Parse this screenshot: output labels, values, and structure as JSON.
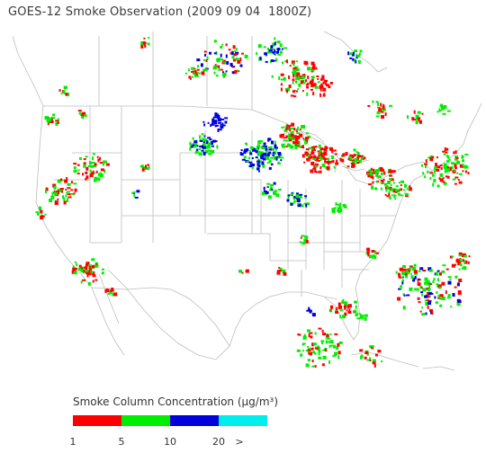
{
  "title": "GOES-12 Smoke Observation (2009 09 04  1800Z)",
  "legend": {
    "title": "Smoke Column Concentration (μg/m³)",
    "bins": [
      {
        "color": "#ff0000",
        "from": 1,
        "to": 5
      },
      {
        "color": "#00ee00",
        "from": 5,
        "to": 10
      },
      {
        "color": "#0000dd",
        "from": 10,
        "to": 20
      },
      {
        "color": "#00eeee",
        "from": 20,
        "to": null
      }
    ],
    "tick_labels": [
      "1",
      "5",
      "10",
      "20",
      ">"
    ]
  },
  "colors": {
    "boundaries": "#bdbdbd",
    "background": "#ffffff"
  },
  "map_region": "Contiguous United States, southern Canada, northern Mexico, Gulf of Mexico, Caribbean"
}
